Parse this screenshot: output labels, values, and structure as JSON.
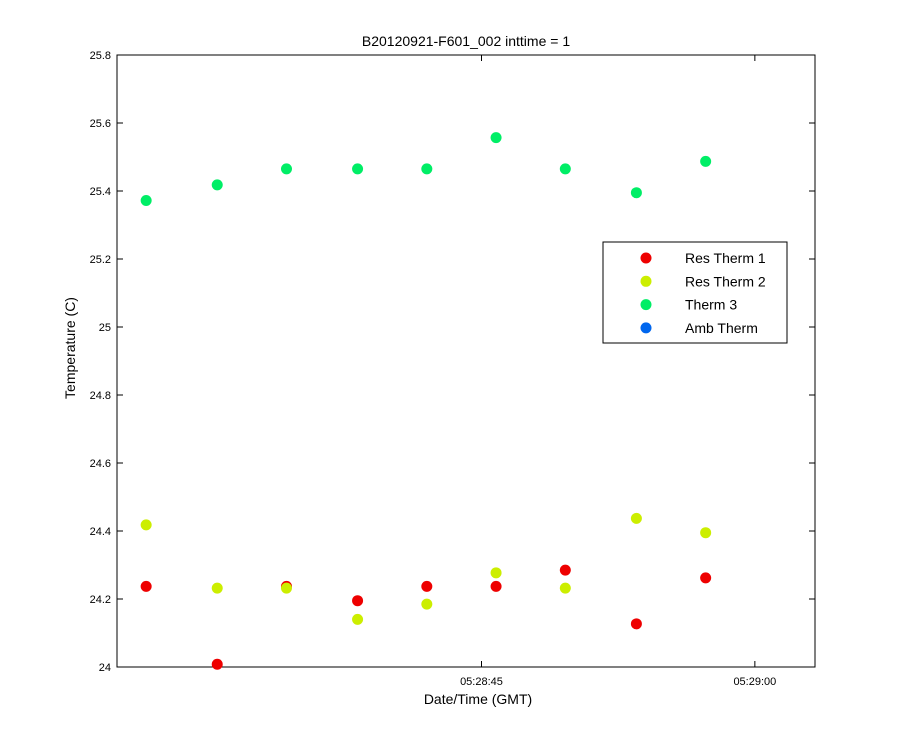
{
  "chart_data": {
    "type": "scatter",
    "title": "B20120921-F601_002 inttime = 1",
    "xlabel": "Date/Time (GMT)",
    "ylabel": "Temperature (C)",
    "x_unit": "time (s)",
    "xlim": [
      25,
      63.3
    ],
    "x_ticks": [
      {
        "value": 45,
        "label": "05:28:45"
      },
      {
        "value": 60,
        "label": "05:29:00"
      }
    ],
    "ylim": [
      24,
      25.8
    ],
    "y_ticks": [
      24,
      24.2,
      24.4,
      24.6,
      24.8,
      25,
      25.2,
      25.4,
      25.6,
      25.8
    ],
    "y_tick_labels": [
      "24",
      "24.2",
      "24.4",
      "24.6",
      "24.8",
      "25",
      "25.2",
      "25.4",
      "25.6",
      "25.8"
    ],
    "grid": false,
    "legend_position": "right",
    "series": [
      {
        "name": "Res Therm 1",
        "color": "#ee0000",
        "points": [
          [
            26.6,
            24.237
          ],
          [
            30.5,
            24.008
          ],
          [
            34.3,
            24.237
          ],
          [
            38.2,
            24.195
          ],
          [
            42.0,
            24.237
          ],
          [
            45.8,
            24.237
          ],
          [
            49.6,
            24.285
          ],
          [
            53.5,
            24.127
          ],
          [
            57.3,
            24.262
          ]
        ]
      },
      {
        "name": "Res Therm 2",
        "color": "#ccee00",
        "points": [
          [
            26.6,
            24.418
          ],
          [
            30.5,
            24.232
          ],
          [
            34.3,
            24.232
          ],
          [
            38.2,
            24.14
          ],
          [
            42.0,
            24.185
          ],
          [
            45.8,
            24.277
          ],
          [
            49.6,
            24.232
          ],
          [
            53.5,
            24.437
          ],
          [
            57.3,
            24.395
          ]
        ]
      },
      {
        "name": "Therm 3",
        "color": "#00ee66",
        "points": [
          [
            26.6,
            25.372
          ],
          [
            30.5,
            25.418
          ],
          [
            34.3,
            25.465
          ],
          [
            38.2,
            25.465
          ],
          [
            42.0,
            25.465
          ],
          [
            45.8,
            25.557
          ],
          [
            49.6,
            25.465
          ],
          [
            53.5,
            25.395
          ],
          [
            57.3,
            25.487
          ]
        ]
      },
      {
        "name": "Amb Therm",
        "color": "#0066ee",
        "points": []
      }
    ]
  }
}
